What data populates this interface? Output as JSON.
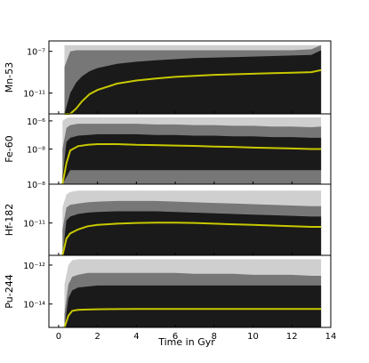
{
  "chart_data": {
    "type": "area",
    "xlabel": "Time in Gyr",
    "xlim": [
      -0.5,
      14
    ],
    "xticks": [
      0,
      2,
      4,
      6,
      8,
      10,
      12,
      14
    ],
    "shared_x": true,
    "colors": {
      "band_outer": "#cfcfcf",
      "band_middle": "#777777",
      "band_inner": "#1a1a1a",
      "median": "#c8c800"
    },
    "panels": [
      {
        "ylabel": "Mn-53",
        "yscale": "log",
        "ylim_log10": [
          -13.0,
          -6.0
        ],
        "yticks": [
          {
            "log10": -7,
            "label": "10⁻⁷"
          },
          {
            "log10": -11,
            "label": "10⁻¹¹"
          }
        ],
        "x": [
          0.3,
          0.6,
          0.9,
          1.2,
          1.6,
          2.0,
          3.0,
          4.0,
          5.0,
          6.0,
          7.0,
          8.0,
          9.0,
          10.0,
          11.0,
          12.0,
          13.0,
          13.5
        ],
        "band_outer_upper": [
          -6.4,
          -6.4,
          -6.4,
          -6.4,
          -6.4,
          -6.4,
          -6.4,
          -6.4,
          -6.4,
          -6.4,
          -6.4,
          -6.4,
          -6.4,
          -6.4,
          -6.4,
          -6.4,
          -6.4,
          -6.4
        ],
        "band_outer_lower": [
          -9.5,
          -12.5,
          -13.0,
          -13.0,
          -13.0,
          -13.0,
          -13.0,
          -13.0,
          -13.0,
          -13.0,
          -13.0,
          -13.0,
          -13.0,
          -13.0,
          -13.0,
          -13.0,
          -13.0,
          -13.0
        ],
        "band_middle_upper": [
          -8.5,
          -7.0,
          -6.9,
          -6.9,
          -6.9,
          -6.9,
          -6.9,
          -6.9,
          -6.9,
          -6.9,
          -6.9,
          -6.9,
          -6.9,
          -6.9,
          -6.9,
          -6.9,
          -6.8,
          -6.4
        ],
        "band_middle_lower": [
          -13.0,
          -13.0,
          -13.0,
          -13.0,
          -13.0,
          -13.0,
          -13.0,
          -13.0,
          -13.0,
          -13.0,
          -13.0,
          -13.0,
          -13.0,
          -13.0,
          -13.0,
          -13.0,
          -13.0,
          -13.0
        ],
        "band_inner_upper": [
          -13.0,
          -11.0,
          -10.0,
          -9.4,
          -8.9,
          -8.6,
          -8.2,
          -8.0,
          -7.85,
          -7.75,
          -7.65,
          -7.6,
          -7.55,
          -7.5,
          -7.45,
          -7.4,
          -7.35,
          -6.9
        ],
        "band_inner_lower": [
          -13.0,
          -13.0,
          -13.0,
          -13.0,
          -13.0,
          -13.0,
          -13.0,
          -13.0,
          -13.0,
          -13.0,
          -13.0,
          -13.0,
          -13.0,
          -13.0,
          -13.0,
          -13.0,
          -13.0,
          -13.0
        ],
        "median": [
          -13.0,
          -13.0,
          -12.5,
          -11.8,
          -11.1,
          -10.7,
          -10.1,
          -9.8,
          -9.6,
          -9.45,
          -9.35,
          -9.25,
          -9.2,
          -9.15,
          -9.1,
          -9.05,
          -9.0,
          -8.8
        ]
      },
      {
        "ylabel": "Fe-60",
        "yscale": "log",
        "ylim_log10": [
          -10.5,
          -5.5
        ],
        "yticks": [
          {
            "log10": -6,
            "label": "10⁻⁶"
          },
          {
            "log10": -8,
            "label": "10⁻⁸"
          }
        ],
        "x": [
          0.2,
          0.4,
          0.6,
          1.0,
          1.5,
          2.0,
          3.0,
          4.0,
          5.0,
          6.0,
          7.0,
          8.0,
          9.0,
          10.0,
          11.0,
          12.0,
          13.0,
          13.5
        ],
        "band_outer_upper": [
          -6.0,
          -5.8,
          -5.75,
          -5.75,
          -5.75,
          -5.75,
          -5.75,
          -5.75,
          -5.75,
          -5.75,
          -5.75,
          -5.75,
          -5.75,
          -5.75,
          -5.75,
          -5.75,
          -5.75,
          -5.75
        ],
        "band_outer_lower": [
          -10.5,
          -10.5,
          -10.5,
          -10.5,
          -10.5,
          -10.5,
          -10.5,
          -10.5,
          -10.5,
          -10.5,
          -10.5,
          -10.5,
          -10.5,
          -10.5,
          -10.5,
          -10.5,
          -10.5,
          -10.5
        ],
        "band_middle_upper": [
          -8.0,
          -6.5,
          -6.3,
          -6.2,
          -6.2,
          -6.2,
          -6.2,
          -6.2,
          -6.25,
          -6.25,
          -6.3,
          -6.3,
          -6.35,
          -6.35,
          -6.4,
          -6.4,
          -6.45,
          -6.4
        ],
        "band_middle_lower": [
          -10.5,
          -10.5,
          -10.5,
          -10.5,
          -10.5,
          -10.5,
          -10.5,
          -10.5,
          -10.5,
          -10.5,
          -10.5,
          -10.5,
          -10.5,
          -10.5,
          -10.5,
          -10.5,
          -10.5,
          -10.5
        ],
        "band_inner_upper": [
          -10.0,
          -7.5,
          -7.2,
          -7.05,
          -7.0,
          -6.95,
          -6.95,
          -6.95,
          -7.0,
          -7.0,
          -7.05,
          -7.05,
          -7.1,
          -7.1,
          -7.15,
          -7.15,
          -7.2,
          -7.2
        ],
        "band_inner_lower": [
          -10.5,
          -10.0,
          -9.5,
          -9.5,
          -9.5,
          -9.5,
          -9.5,
          -9.5,
          -9.5,
          -9.5,
          -9.5,
          -9.5,
          -9.5,
          -9.5,
          -9.5,
          -9.5,
          -9.5,
          -9.5
        ],
        "median": [
          -10.5,
          -9.0,
          -8.1,
          -7.8,
          -7.7,
          -7.65,
          -7.65,
          -7.7,
          -7.72,
          -7.75,
          -7.78,
          -7.82,
          -7.85,
          -7.9,
          -7.93,
          -7.96,
          -8.0,
          -8.0
        ]
      },
      {
        "ylabel": "Hf-182",
        "yscale": "log",
        "ylim_log10": [
          -13.5,
          -8.0
        ],
        "yticks": [
          {
            "log10": -8,
            "label": "10⁻⁸"
          },
          {
            "log10": -11,
            "label": "10⁻¹¹"
          }
        ],
        "x": [
          0.2,
          0.4,
          0.6,
          1.0,
          1.5,
          2.0,
          3.0,
          4.0,
          5.0,
          6.0,
          7.0,
          8.0,
          9.0,
          10.0,
          11.0,
          12.0,
          13.0,
          13.5
        ],
        "band_outer_upper": [
          -9.8,
          -8.8,
          -8.6,
          -8.5,
          -8.5,
          -8.5,
          -8.5,
          -8.5,
          -8.5,
          -8.5,
          -8.5,
          -8.5,
          -8.5,
          -8.5,
          -8.5,
          -8.5,
          -8.5,
          -8.5
        ],
        "band_outer_lower": [
          -13.5,
          -13.5,
          -13.5,
          -13.5,
          -13.5,
          -13.5,
          -13.5,
          -13.5,
          -13.5,
          -13.5,
          -13.5,
          -13.5,
          -13.5,
          -13.5,
          -13.5,
          -13.5,
          -13.5,
          -13.5
        ],
        "band_middle_upper": [
          -11.5,
          -9.8,
          -9.6,
          -9.5,
          -9.4,
          -9.35,
          -9.3,
          -9.3,
          -9.3,
          -9.35,
          -9.4,
          -9.45,
          -9.5,
          -9.55,
          -9.6,
          -9.65,
          -9.7,
          -9.7
        ],
        "band_middle_lower": [
          -13.5,
          -13.5,
          -13.5,
          -13.5,
          -13.5,
          -13.5,
          -13.5,
          -13.5,
          -13.5,
          -13.5,
          -13.5,
          -13.5,
          -13.5,
          -13.5,
          -13.5,
          -13.5,
          -13.5,
          -13.5
        ],
        "band_inner_upper": [
          -13.5,
          -10.8,
          -10.5,
          -10.3,
          -10.2,
          -10.15,
          -10.1,
          -10.1,
          -10.1,
          -10.15,
          -10.2,
          -10.25,
          -10.3,
          -10.35,
          -10.4,
          -10.45,
          -10.5,
          -10.5
        ],
        "band_inner_lower": [
          -13.5,
          -13.5,
          -13.5,
          -13.5,
          -13.5,
          -13.5,
          -13.5,
          -13.5,
          -13.5,
          -13.5,
          -13.5,
          -13.5,
          -13.5,
          -13.5,
          -13.5,
          -13.5,
          -13.5,
          -13.5
        ],
        "median": [
          -13.5,
          -12.2,
          -11.8,
          -11.5,
          -11.25,
          -11.15,
          -11.05,
          -11.0,
          -10.98,
          -10.98,
          -11.0,
          -11.05,
          -11.1,
          -11.15,
          -11.2,
          -11.25,
          -11.3,
          -11.3
        ]
      },
      {
        "ylabel": "Pu-244",
        "yscale": "log",
        "ylim_log10": [
          -15.2,
          -11.5
        ],
        "yticks": [
          {
            "log10": -12,
            "label": "10⁻¹²"
          },
          {
            "log10": -14,
            "label": "10⁻¹⁴"
          }
        ],
        "x": [
          0.3,
          0.5,
          0.7,
          1.0,
          1.5,
          2.0,
          3.0,
          4.0,
          5.0,
          6.0,
          7.0,
          8.0,
          9.0,
          10.0,
          11.0,
          12.0,
          13.0,
          13.5
        ],
        "band_outer_upper": [
          -13.0,
          -12.0,
          -11.75,
          -11.7,
          -11.7,
          -11.7,
          -11.7,
          -11.7,
          -11.7,
          -11.7,
          -11.7,
          -11.7,
          -11.7,
          -11.7,
          -11.7,
          -11.7,
          -11.7,
          -11.7
        ],
        "band_outer_lower": [
          -15.2,
          -15.2,
          -15.2,
          -15.2,
          -15.2,
          -15.2,
          -15.2,
          -15.2,
          -15.2,
          -15.2,
          -15.2,
          -15.2,
          -15.2,
          -15.2,
          -15.2,
          -15.2,
          -15.2,
          -15.2
        ],
        "band_middle_upper": [
          -14.5,
          -13.0,
          -12.6,
          -12.5,
          -12.4,
          -12.4,
          -12.4,
          -12.4,
          -12.4,
          -12.4,
          -12.45,
          -12.45,
          -12.45,
          -12.5,
          -12.5,
          -12.5,
          -12.55,
          -12.55
        ],
        "band_middle_lower": [
          -15.2,
          -15.2,
          -15.2,
          -15.2,
          -15.2,
          -15.2,
          -15.2,
          -15.2,
          -15.2,
          -15.2,
          -15.2,
          -15.2,
          -15.2,
          -15.2,
          -15.2,
          -15.2,
          -15.2,
          -15.2
        ],
        "band_inner_upper": [
          -15.2,
          -13.7,
          -13.3,
          -13.15,
          -13.1,
          -13.05,
          -13.05,
          -13.05,
          -13.05,
          -13.05,
          -13.05,
          -13.05,
          -13.05,
          -13.05,
          -13.05,
          -13.05,
          -13.05,
          -13.05
        ],
        "band_inner_lower": [
          -15.2,
          -15.2,
          -15.2,
          -15.2,
          -15.2,
          -15.2,
          -15.2,
          -15.2,
          -15.2,
          -15.2,
          -15.2,
          -15.2,
          -15.2,
          -15.2,
          -15.2,
          -15.2,
          -15.2,
          -15.2
        ],
        "median": [
          -15.2,
          -14.6,
          -14.35,
          -14.3,
          -14.28,
          -14.27,
          -14.26,
          -14.25,
          -14.25,
          -14.25,
          -14.25,
          -14.25,
          -14.25,
          -14.25,
          -14.25,
          -14.25,
          -14.25,
          -14.25
        ]
      }
    ]
  }
}
